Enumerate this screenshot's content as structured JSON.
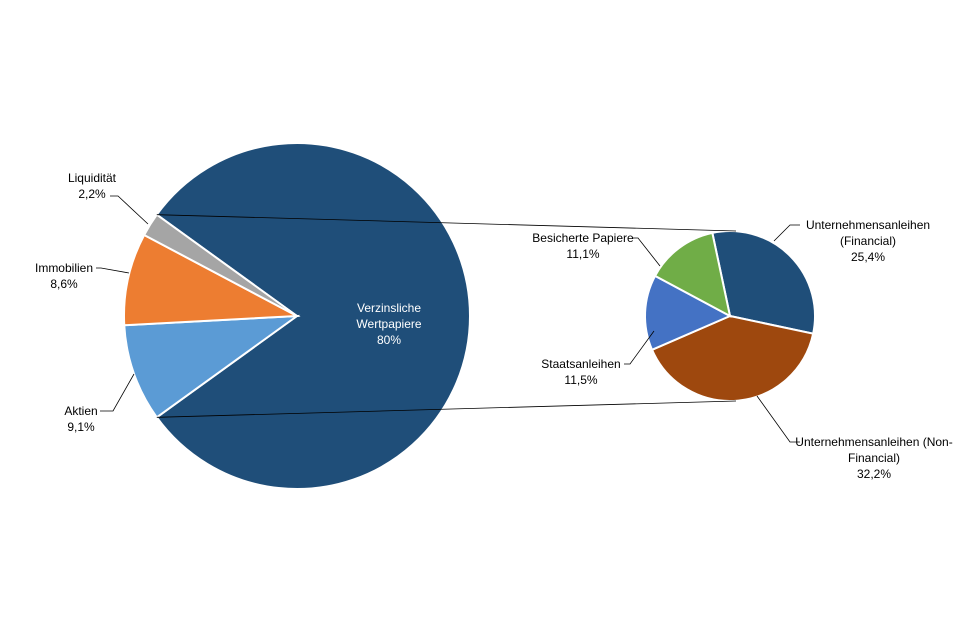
{
  "chart_data": {
    "type": "pie",
    "subtype": "pie-of-pie",
    "title": "",
    "main": {
      "slices": [
        {
          "label": [
            "Verzinsliche",
            "Wertpapiere"
          ],
          "value_text": "80%",
          "value": 80.0,
          "color": "#1F4E79"
        },
        {
          "label": [
            "Aktien"
          ],
          "value_text": "9,1%",
          "value": 9.1,
          "color": "#5B9BD5"
        },
        {
          "label": [
            "Immobilien"
          ],
          "value_text": "8,6%",
          "value": 8.6,
          "color": "#ED7D31"
        },
        {
          "label": [
            "Liquidität"
          ],
          "value_text": "2,2%",
          "value": 2.2,
          "color": "#A5A5A5"
        }
      ]
    },
    "secondary": {
      "parent": "Verzinsliche Wertpapiere",
      "slices": [
        {
          "label": [
            "Unternehmensanleihen",
            "(Financial)"
          ],
          "value_text": "25,4%",
          "value": 25.4,
          "color": "#1F4E79"
        },
        {
          "label": [
            "Unternehmensanleihen (Non-",
            "Financial)"
          ],
          "value_text": "32,2%",
          "value": 32.2,
          "color": "#9E480E"
        },
        {
          "label": [
            "Staatsanleihen"
          ],
          "value_text": "11,5%",
          "value": 11.5,
          "color": "#4472C4"
        },
        {
          "label": [
            "Besicherte Papiere"
          ],
          "value_text": "11,1%",
          "value": 11.1,
          "color": "#70AD47"
        }
      ]
    }
  }
}
